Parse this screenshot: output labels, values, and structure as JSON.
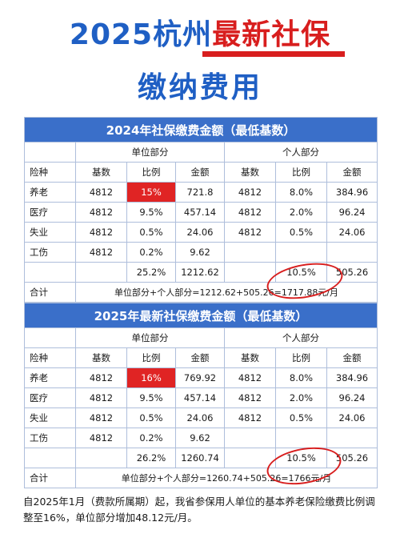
{
  "header": {
    "line1_a": "2025杭州",
    "line1_b": "最新社保",
    "line2": "缴纳费用"
  },
  "table_2024": {
    "title": "2024年社保缴费金额（最低基数）",
    "group_unit": "单位部分",
    "group_personal": "个人部分",
    "cols": {
      "type": "险种",
      "unit_base": "基数",
      "unit_rate": "比例",
      "unit_amount": "金额",
      "pers_base": "基数",
      "pers_rate": "比例",
      "pers_amount": "金额"
    },
    "rows": [
      {
        "type": "养老",
        "unit_base": "4812",
        "unit_rate": "15%",
        "unit_amount": "721.8",
        "pers_base": "4812",
        "pers_rate": "8.0%",
        "pers_amount": "384.96"
      },
      {
        "type": "医疗",
        "unit_base": "4812",
        "unit_rate": "9.5%",
        "unit_amount": "457.14",
        "pers_base": "4812",
        "pers_rate": "2.0%",
        "pers_amount": "96.24"
      },
      {
        "type": "失业",
        "unit_base": "4812",
        "unit_rate": "0.5%",
        "unit_amount": "24.06",
        "pers_base": "4812",
        "pers_rate": "0.5%",
        "pers_amount": "24.06"
      },
      {
        "type": "工伤",
        "unit_base": "4812",
        "unit_rate": "0.2%",
        "unit_amount": "9.62",
        "pers_base": "",
        "pers_rate": "",
        "pers_amount": ""
      }
    ],
    "totals": {
      "unit_rate": "25.2%",
      "unit_amount": "1212.62",
      "pers_rate": "10.5%",
      "pers_amount": "505.26"
    },
    "sum_label": "合计",
    "sum_formula": "单位部分+个人部分=1212.62+505.26=1717.88元/月"
  },
  "table_2025": {
    "title": "2025年最新社保缴费金额（最低基数）",
    "group_unit": "单位部分",
    "group_personal": "个人部分",
    "cols": {
      "type": "险种",
      "unit_base": "基数",
      "unit_rate": "比例",
      "unit_amount": "金额",
      "pers_base": "基数",
      "pers_rate": "比例",
      "pers_amount": "金额"
    },
    "rows": [
      {
        "type": "养老",
        "unit_base": "4812",
        "unit_rate": "16%",
        "unit_amount": "769.92",
        "pers_base": "4812",
        "pers_rate": "8.0%",
        "pers_amount": "384.96"
      },
      {
        "type": "医疗",
        "unit_base": "4812",
        "unit_rate": "9.5%",
        "unit_amount": "457.14",
        "pers_base": "4812",
        "pers_rate": "2.0%",
        "pers_amount": "96.24"
      },
      {
        "type": "失业",
        "unit_base": "4812",
        "unit_rate": "0.5%",
        "unit_amount": "24.06",
        "pers_base": "4812",
        "pers_rate": "0.5%",
        "pers_amount": "24.06"
      },
      {
        "type": "工伤",
        "unit_base": "4812",
        "unit_rate": "0.2%",
        "unit_amount": "9.62",
        "pers_base": "",
        "pers_rate": "",
        "pers_amount": ""
      }
    ],
    "totals": {
      "unit_rate": "26.2%",
      "unit_amount": "1260.74",
      "pers_rate": "10.5%",
      "pers_amount": "505.26"
    },
    "sum_label": "合计",
    "sum_formula": "单位部分+个人部分=1260.74+505.26=1766元/月"
  },
  "footnote": "自2025年1月（费款所属期）起，我省参保用人单位的基本养老保险缴费比例调整至16%，单位部分增加48.12元/月。",
  "colors": {
    "accent_blue": "#3a6fc9",
    "title_blue": "#1f5fc4",
    "highlight_red": "#e02424"
  }
}
